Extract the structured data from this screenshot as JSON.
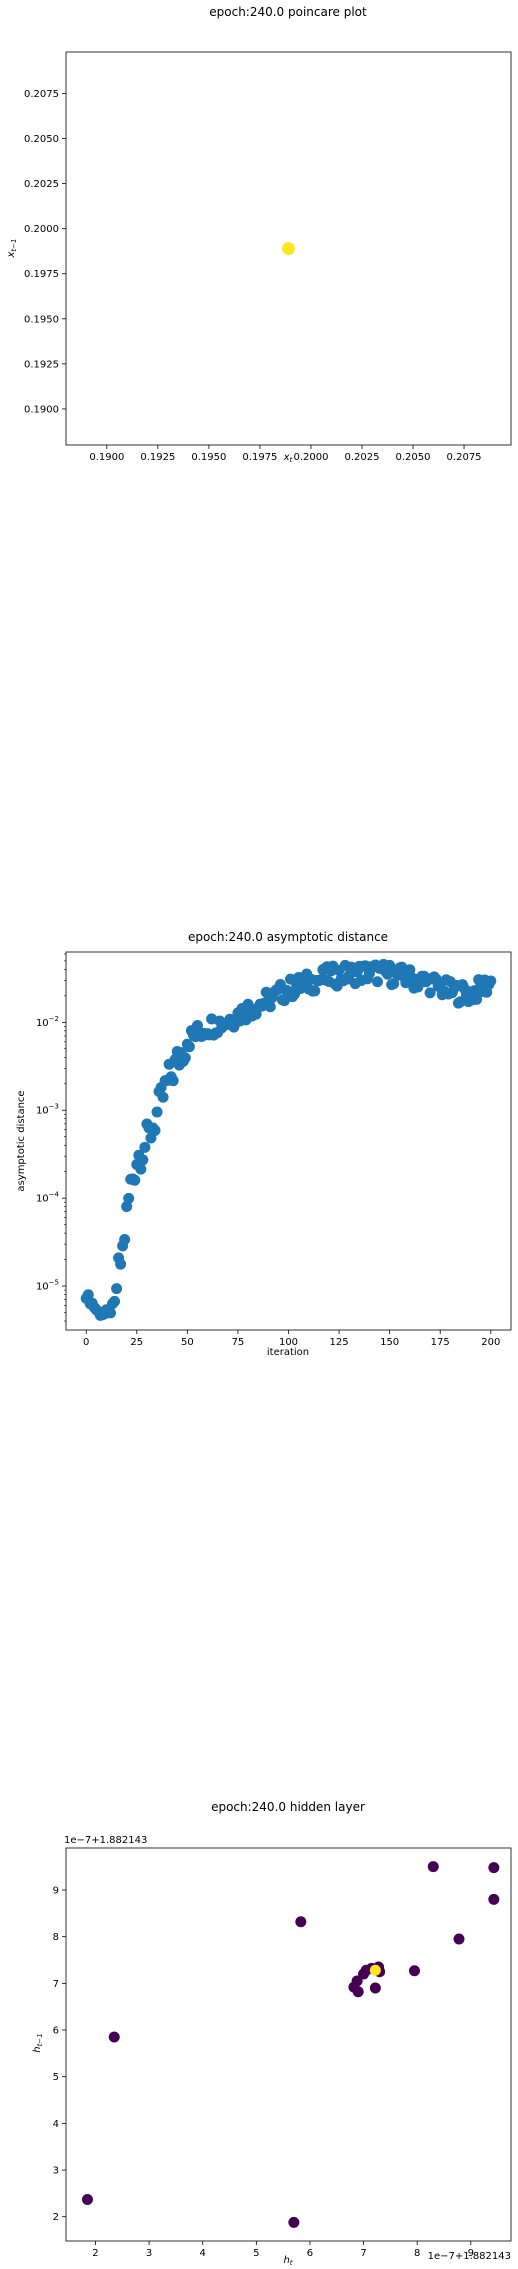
{
  "chart_data": [
    {
      "type": "scatter",
      "title": "epoch:240.0 poincare plot",
      "xlabel": "x_t",
      "ylabel": "x_{t-1}",
      "xlim": [
        0.188,
        0.2098
      ],
      "ylim": [
        0.188,
        0.2098
      ],
      "xticks": [
        0.19,
        0.1925,
        0.195,
        0.1975,
        0.2,
        0.2025,
        0.205,
        0.2075
      ],
      "xtick_labels": [
        "0.1900",
        "0.1925",
        "0.1950",
        "0.1975",
        "0.2000",
        "0.2025",
        "0.2050",
        "0.2075"
      ],
      "yticks": [
        0.19,
        0.1925,
        0.195,
        0.1975,
        0.2,
        0.2025,
        0.205,
        0.2075
      ],
      "ytick_labels": [
        "0.1900",
        "0.1925",
        "0.1950",
        "0.1975",
        "0.2000",
        "0.2025",
        "0.2050",
        "0.2075"
      ],
      "points": [
        {
          "x": 0.1989,
          "y": 0.1989
        }
      ],
      "point_color": "#fde725"
    },
    {
      "type": "scatter",
      "title": "epoch:240.0 asymptotic distance",
      "xlabel": "iteration",
      "ylabel": "asymptotic distance",
      "yscale": "log",
      "xlim": [
        -10,
        210
      ],
      "ylim_exp": [
        -5.5,
        -1.2
      ],
      "xticks": [
        0,
        25,
        50,
        75,
        100,
        125,
        150,
        175,
        200
      ],
      "xtick_labels": [
        "0",
        "25",
        "50",
        "75",
        "100",
        "125",
        "150",
        "175",
        "200"
      ],
      "yticks_exp": [
        -5,
        -4,
        -3,
        -2
      ],
      "ytick_labels": [
        "10^-5",
        "10^-4",
        "10^-3",
        "10^-2"
      ],
      "point_color": "#1f77b4",
      "curve": [
        [
          0,
          -5.1
        ],
        [
          3,
          -5.2
        ],
        [
          6,
          -5.3
        ],
        [
          9,
          -5.32
        ],
        [
          12,
          -5.28
        ],
        [
          14,
          -5.2
        ],
        [
          16,
          -4.85
        ],
        [
          18,
          -4.6
        ],
        [
          20,
          -4.2
        ],
        [
          22,
          -3.85
        ],
        [
          25,
          -3.55
        ],
        [
          30,
          -3.35
        ],
        [
          35,
          -3.05
        ],
        [
          40,
          -2.7
        ],
        [
          45,
          -2.45
        ],
        [
          50,
          -2.2
        ],
        [
          60,
          -2.05
        ],
        [
          70,
          -1.98
        ],
        [
          80,
          -1.85
        ],
        [
          90,
          -1.75
        ],
        [
          100,
          -1.62
        ],
        [
          110,
          -1.55
        ],
        [
          120,
          -1.48
        ],
        [
          130,
          -1.45
        ],
        [
          140,
          -1.43
        ],
        [
          150,
          -1.45
        ],
        [
          160,
          -1.5
        ],
        [
          170,
          -1.55
        ],
        [
          180,
          -1.65
        ],
        [
          190,
          -1.68
        ],
        [
          200,
          -1.55
        ]
      ]
    },
    {
      "type": "scatter",
      "title": "epoch:240.0 hidden layer",
      "xlabel": "h_t",
      "ylabel": "h_{t-1}",
      "x_offset_text": "1e−7+1.882143",
      "y_offset_text": "1e−7+1.882143",
      "xlim": [
        1.45,
        9.75
      ],
      "ylim": [
        1.48,
        9.9
      ],
      "xticks": [
        2,
        3,
        4,
        5,
        6,
        7,
        8,
        9
      ],
      "xtick_labels": [
        "2",
        "3",
        "4",
        "5",
        "6",
        "7",
        "8",
        "9"
      ],
      "yticks": [
        2,
        3,
        4,
        5,
        6,
        7,
        8,
        9
      ],
      "ytick_labels": [
        "2",
        "3",
        "4",
        "5",
        "6",
        "7",
        "8",
        "9"
      ],
      "colors": {
        "dark": "#440154",
        "bright": "#fde725"
      },
      "points": [
        {
          "x": 1.85,
          "y": 2.37,
          "c": "dark"
        },
        {
          "x": 2.35,
          "y": 5.85,
          "c": "dark"
        },
        {
          "x": 5.7,
          "y": 1.88,
          "c": "dark"
        },
        {
          "x": 5.83,
          "y": 8.32,
          "c": "dark"
        },
        {
          "x": 6.82,
          "y": 6.92,
          "c": "dark"
        },
        {
          "x": 6.88,
          "y": 7.05,
          "c": "dark"
        },
        {
          "x": 6.9,
          "y": 6.82,
          "c": "dark"
        },
        {
          "x": 7.0,
          "y": 7.2,
          "c": "dark"
        },
        {
          "x": 7.05,
          "y": 7.28,
          "c": "dark"
        },
        {
          "x": 7.15,
          "y": 7.32,
          "c": "dark"
        },
        {
          "x": 7.22,
          "y": 6.9,
          "c": "dark"
        },
        {
          "x": 7.28,
          "y": 7.35,
          "c": "dark"
        },
        {
          "x": 7.3,
          "y": 7.25,
          "c": "dark"
        },
        {
          "x": 7.95,
          "y": 7.27,
          "c": "dark"
        },
        {
          "x": 8.3,
          "y": 9.5,
          "c": "dark"
        },
        {
          "x": 8.78,
          "y": 7.95,
          "c": "dark"
        },
        {
          "x": 9.43,
          "y": 9.48,
          "c": "dark"
        },
        {
          "x": 9.43,
          "y": 8.8,
          "c": "dark"
        },
        {
          "x": 7.22,
          "y": 7.28,
          "c": "bright"
        }
      ]
    }
  ]
}
